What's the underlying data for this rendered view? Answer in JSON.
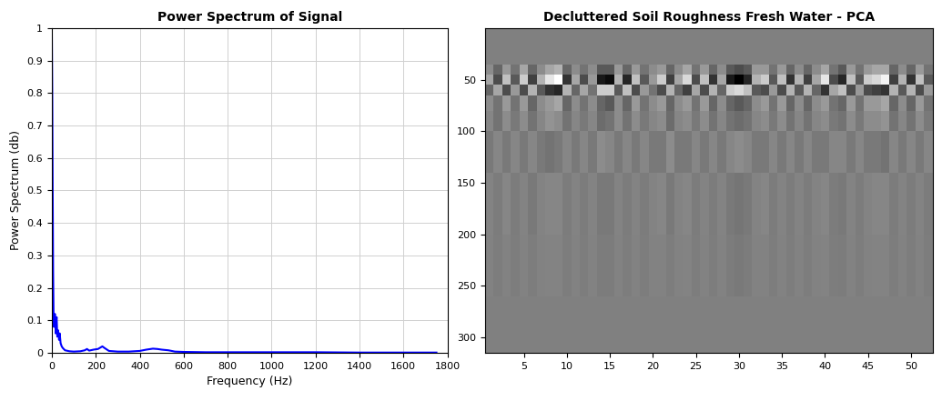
{
  "chart_data": [
    {
      "type": "line",
      "title": "Power Spectrum of Signal",
      "x_label": "Frequency (Hz)",
      "y_label": "Power Spectrum (db)",
      "x": [
        0,
        2,
        4,
        6,
        8,
        10,
        12,
        14,
        16,
        18,
        20,
        22,
        25,
        28,
        30,
        33,
        36,
        40,
        45,
        50,
        60,
        80,
        100,
        130,
        150,
        160,
        170,
        190,
        210,
        230,
        240,
        260,
        300,
        350,
        400,
        430,
        460,
        480,
        500,
        530,
        560,
        600,
        700,
        800,
        1000,
        1200,
        1400,
        1600,
        1750
      ],
      "values": [
        1.0,
        0.8,
        0.5,
        0.25,
        0.12,
        0.08,
        0.1,
        0.12,
        0.09,
        0.06,
        0.1,
        0.11,
        0.05,
        0.07,
        0.06,
        0.04,
        0.06,
        0.03,
        0.02,
        0.015,
        0.008,
        0.005,
        0.004,
        0.005,
        0.008,
        0.012,
        0.007,
        0.01,
        0.012,
        0.02,
        0.015,
        0.006,
        0.004,
        0.004,
        0.006,
        0.01,
        0.013,
        0.012,
        0.01,
        0.008,
        0.004,
        0.003,
        0.002,
        0.002,
        0.002,
        0.002,
        0.001,
        0.001,
        0.001
      ],
      "color": "#0000ff",
      "xlim": [
        0,
        1800
      ],
      "xticks": [
        0,
        200,
        400,
        600,
        800,
        1000,
        1200,
        1400,
        1600,
        1800
      ],
      "ylim": [
        0,
        1
      ],
      "yticks": [
        0,
        0.1,
        0.2,
        0.3,
        0.4,
        0.5,
        0.6,
        0.7,
        0.8,
        0.9,
        1
      ],
      "grid": true
    },
    {
      "type": "heatmap",
      "title": "Decluttered Soil Roughness Fresh Water - PCA",
      "color": "gray",
      "value_range": [
        -1,
        1
      ],
      "row_edges": [
        0,
        35,
        45,
        55,
        65,
        80,
        100,
        140,
        200,
        260,
        315
      ],
      "cells": [
        [
          0,
          0,
          0,
          0,
          0,
          0,
          0,
          0,
          0,
          0,
          0,
          0,
          0,
          0,
          0,
          0,
          0,
          0,
          0,
          0,
          0,
          0,
          0,
          0,
          0,
          0,
          0,
          0,
          0,
          0,
          0,
          0,
          0,
          0,
          0,
          0,
          0,
          0,
          0,
          0,
          0,
          0,
          0,
          0,
          0,
          0,
          0,
          0,
          0,
          0,
          0,
          0
        ],
        [
          0.1,
          -0.2,
          0.2,
          -0.1,
          0.3,
          -0.2,
          0.1,
          0.3,
          0.4,
          -0.2,
          0.1,
          -0.1,
          0.1,
          -0.3,
          -0.3,
          0.2,
          -0.2,
          0.2,
          -0.1,
          0.1,
          0.2,
          -0.2,
          0.1,
          0.3,
          -0.1,
          0.2,
          -0.2,
          0.1,
          -0.3,
          -0.4,
          -0.3,
          0.2,
          0.2,
          -0.1,
          0.2,
          -0.2,
          0.1,
          -0.2,
          0.1,
          0.3,
          -0.1,
          -0.3,
          0.2,
          -0.1,
          0.2,
          0.3,
          0.3,
          -0.2,
          0.1,
          -0.2,
          0.2,
          -0.1
        ],
        [
          0.3,
          -0.4,
          0.5,
          -0.3,
          0.6,
          -0.5,
          0.4,
          0.8,
          1.0,
          -0.6,
          0.3,
          -0.4,
          0.2,
          -0.8,
          -0.9,
          0.4,
          -0.7,
          0.5,
          -0.3,
          0.2,
          0.6,
          -0.5,
          0.3,
          0.7,
          -0.4,
          0.5,
          -0.6,
          0.3,
          -0.8,
          -1.0,
          -0.7,
          0.4,
          0.6,
          -0.3,
          0.5,
          -0.6,
          0.4,
          -0.5,
          0.3,
          0.8,
          -0.4,
          -0.7,
          0.5,
          -0.3,
          0.6,
          0.7,
          0.9,
          -0.5,
          0.4,
          -0.6,
          0.5,
          -0.3
        ],
        [
          -0.2,
          0.3,
          -0.4,
          0.2,
          -0.4,
          0.4,
          -0.3,
          -0.6,
          -0.7,
          0.4,
          -0.2,
          0.3,
          -0.1,
          0.6,
          0.6,
          -0.3,
          0.5,
          -0.4,
          0.2,
          -0.1,
          -0.4,
          0.4,
          -0.2,
          -0.5,
          0.3,
          -0.4,
          0.4,
          -0.2,
          0.6,
          0.7,
          0.5,
          -0.3,
          -0.4,
          0.2,
          -0.4,
          0.4,
          -0.3,
          0.4,
          -0.2,
          -0.6,
          0.3,
          0.5,
          -0.4,
          0.2,
          -0.4,
          -0.5,
          -0.6,
          0.4,
          -0.3,
          0.4,
          -0.4,
          0.2
        ],
        [
          0.1,
          -0.1,
          0.2,
          -0.1,
          0.2,
          -0.2,
          0.1,
          0.2,
          0.3,
          -0.2,
          0.1,
          -0.1,
          0.1,
          -0.2,
          -0.3,
          0.1,
          -0.2,
          0.2,
          -0.1,
          0.1,
          0.2,
          -0.2,
          0.1,
          0.2,
          -0.1,
          0.2,
          -0.2,
          0.1,
          -0.2,
          -0.3,
          -0.2,
          0.1,
          0.2,
          -0.1,
          0.2,
          -0.2,
          0.1,
          -0.2,
          0.1,
          0.2,
          -0.1,
          -0.2,
          0.2,
          -0.1,
          0.2,
          0.2,
          0.3,
          -0.2,
          0.1,
          -0.2,
          0.2,
          -0.1
        ],
        [
          0.05,
          -0.1,
          0.1,
          -0.05,
          0.1,
          -0.1,
          0.05,
          0.15,
          0.1,
          -0.1,
          0.05,
          -0.05,
          0.05,
          -0.15,
          -0.1,
          0.1,
          -0.1,
          0.1,
          -0.05,
          0.05,
          0.1,
          -0.15,
          0.05,
          0.1,
          -0.05,
          0.1,
          -0.1,
          0.05,
          -0.1,
          -0.15,
          -0.1,
          0.05,
          0.1,
          -0.05,
          0.1,
          -0.1,
          0.05,
          -0.1,
          0.05,
          0.1,
          -0.05,
          -0.1,
          0.1,
          -0.05,
          0.1,
          0.1,
          0.15,
          -0.1,
          0.05,
          -0.1,
          0.1,
          -0.05
        ],
        [
          -0.05,
          0.05,
          -0.05,
          0.05,
          -0.05,
          0.05,
          -0.05,
          -0.1,
          -0.05,
          0.05,
          -0.05,
          0.05,
          -0.05,
          0.1,
          0.05,
          -0.05,
          0.05,
          -0.05,
          0.05,
          -0.05,
          -0.05,
          0.1,
          -0.05,
          -0.05,
          0.05,
          -0.05,
          0.05,
          -0.05,
          0.05,
          0.1,
          0.05,
          -0.05,
          -0.05,
          0.05,
          -0.05,
          0.05,
          -0.05,
          0.05,
          -0.05,
          -0.05,
          0.05,
          0.05,
          -0.05,
          0.05,
          -0.05,
          -0.05,
          -0.1,
          0.05,
          -0.05,
          0.05,
          -0.05,
          0.05
        ],
        [
          0.03,
          -0.03,
          0.05,
          -0.03,
          0.03,
          -0.05,
          0.03,
          0.05,
          0.05,
          -0.03,
          0.03,
          -0.03,
          0.03,
          -0.05,
          -0.05,
          0.03,
          -0.03,
          0.03,
          -0.03,
          0.03,
          0.05,
          -0.05,
          0.03,
          0.05,
          -0.03,
          0.03,
          -0.03,
          0.03,
          -0.05,
          -0.08,
          -0.05,
          0.03,
          0.05,
          -0.03,
          0.03,
          -0.03,
          0.03,
          -0.03,
          0.03,
          0.05,
          -0.03,
          -0.05,
          0.03,
          -0.03,
          0.03,
          0.05,
          0.05,
          -0.03,
          0.03,
          -0.03,
          0.03,
          -0.03
        ],
        [
          0.02,
          -0.02,
          0.02,
          -0.02,
          0.02,
          -0.02,
          0.02,
          0.03,
          0.03,
          -0.02,
          0.02,
          -0.02,
          0.02,
          -0.03,
          -0.03,
          0.02,
          -0.02,
          0.02,
          -0.02,
          0.02,
          0.02,
          -0.02,
          0.02,
          0.03,
          -0.02,
          0.02,
          -0.02,
          0.02,
          -0.03,
          -0.05,
          -0.03,
          0.02,
          0.02,
          -0.02,
          0.02,
          -0.02,
          0.02,
          -0.02,
          0.02,
          0.03,
          -0.02,
          -0.03,
          0.02,
          -0.02,
          0.02,
          0.03,
          0.03,
          -0.02,
          0.02,
          -0.02,
          0.02,
          -0.02
        ],
        [
          0,
          0,
          0,
          0,
          0,
          0,
          0,
          0,
          0,
          0,
          0,
          0,
          0,
          0,
          0,
          0,
          0,
          0,
          0,
          0,
          0,
          0,
          0,
          0,
          0,
          0,
          0,
          0,
          0,
          0,
          0,
          0,
          0,
          0,
          0,
          0,
          0,
          0,
          0,
          0,
          0,
          0,
          0,
          0,
          0,
          0,
          0,
          0,
          0,
          0,
          0,
          0
        ]
      ],
      "xlim": [
        0.5,
        52.5
      ],
      "xticks": [
        5,
        10,
        15,
        20,
        25,
        30,
        35,
        40,
        45,
        50
      ],
      "ylim": [
        315,
        0
      ],
      "yticks": [
        50,
        100,
        150,
        200,
        250,
        300
      ],
      "grid": false
    }
  ]
}
